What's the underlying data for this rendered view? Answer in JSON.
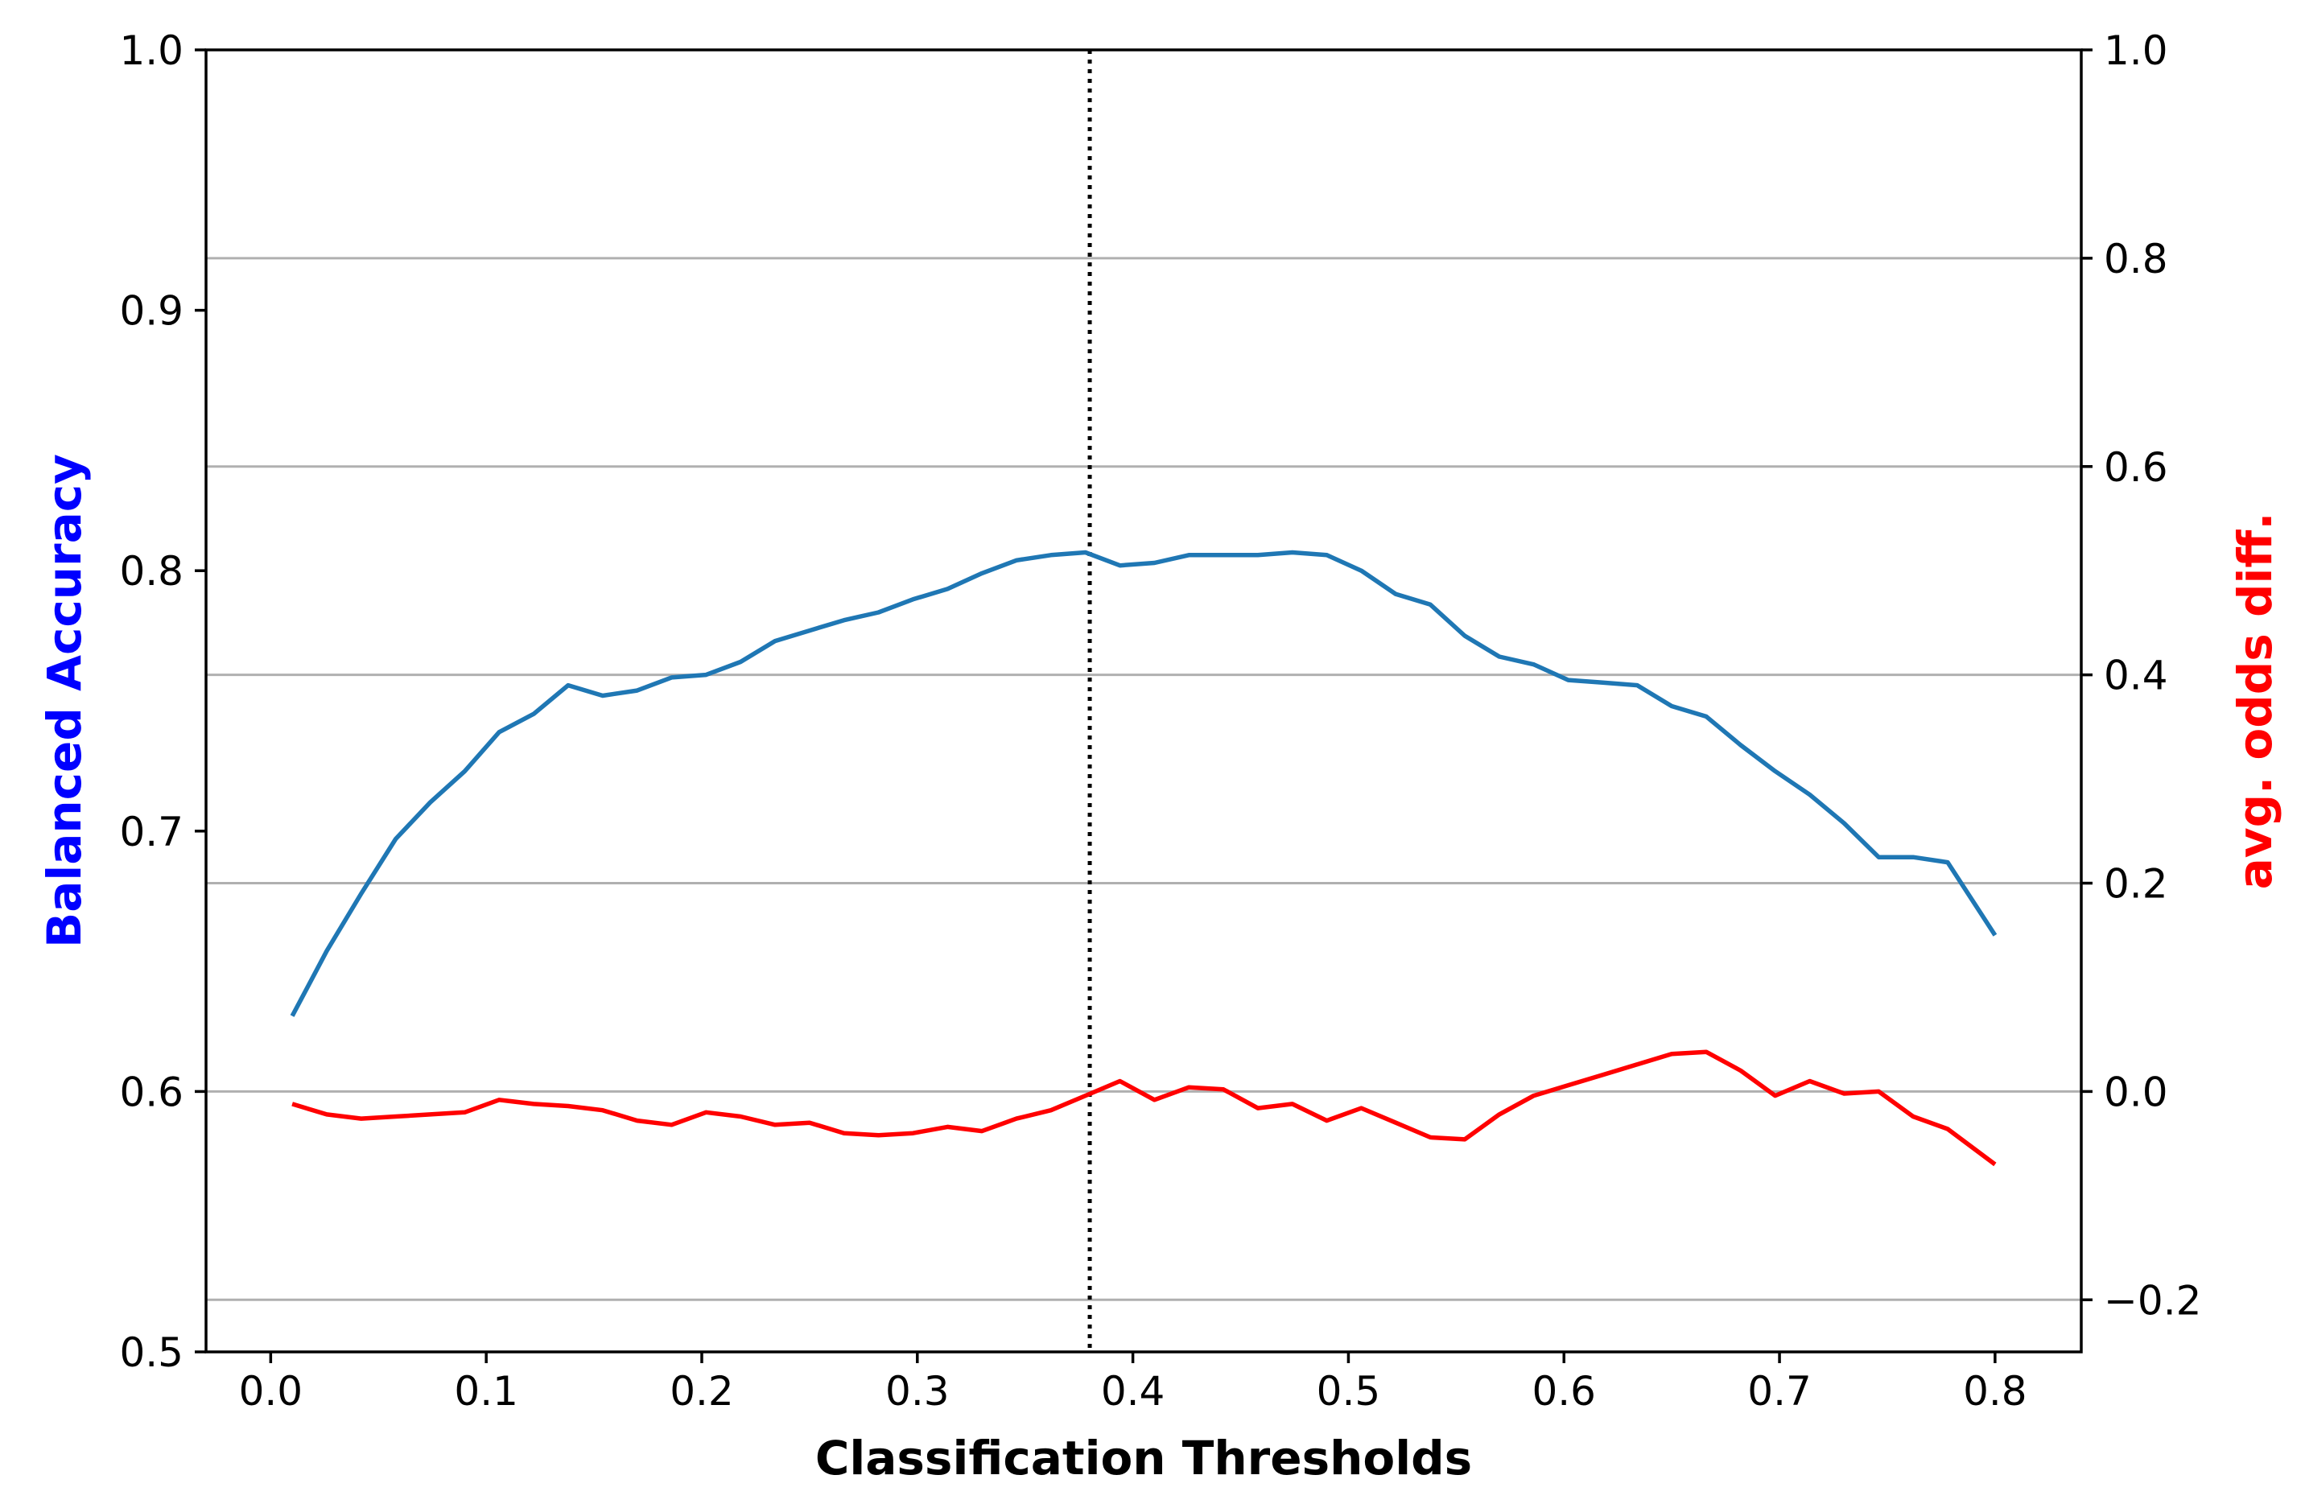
{
  "chart_data": {
    "type": "line",
    "xlabel": "Classification Thresholds",
    "ylabel_left": "Balanced Accuracy",
    "ylabel_right": "avg. odds diff.",
    "xlim": [
      -0.03,
      0.84
    ],
    "ylim_left": [
      0.5,
      1.0
    ],
    "ylim_right": [
      -0.25,
      1.0
    ],
    "x_ticks": [
      0.0,
      0.1,
      0.2,
      0.3,
      0.4,
      0.5,
      0.6,
      0.7,
      0.8
    ],
    "x_tick_labels": [
      "0.0",
      "0.1",
      "0.2",
      "0.3",
      "0.4",
      "0.5",
      "0.6",
      "0.7",
      "0.8"
    ],
    "y_left_ticks": [
      0.5,
      0.6,
      0.7,
      0.8,
      0.9,
      1.0
    ],
    "y_left_tick_labels": [
      "0.5",
      "0.6",
      "0.7",
      "0.8",
      "0.9",
      "1.0"
    ],
    "y_right_ticks": [
      -0.2,
      0.0,
      0.2,
      0.4,
      0.6,
      0.8,
      1.0
    ],
    "y_right_tick_labels": [
      "−0.2",
      "0.0",
      "0.2",
      "0.4",
      "0.6",
      "0.8",
      "1.0"
    ],
    "grid": "horizontal, right axis",
    "vline_x": 0.38,
    "colors": {
      "balanced_accuracy": "#1f77b4",
      "avg_odds_diff": "#ff0000",
      "left_label": "#0000ff",
      "right_label": "#ff0000",
      "grid": "#b0b0b0"
    },
    "x": [
      0.01,
      0.026,
      0.042,
      0.058,
      0.074,
      0.09,
      0.106,
      0.122,
      0.138,
      0.154,
      0.17,
      0.186,
      0.202,
      0.218,
      0.234,
      0.25,
      0.266,
      0.282,
      0.298,
      0.314,
      0.33,
      0.346,
      0.362,
      0.378,
      0.394,
      0.41,
      0.426,
      0.442,
      0.458,
      0.474,
      0.49,
      0.506,
      0.522,
      0.538,
      0.554,
      0.57,
      0.586,
      0.602,
      0.618,
      0.634,
      0.65,
      0.666,
      0.682,
      0.698,
      0.714,
      0.73,
      0.746,
      0.762,
      0.778,
      0.8
    ],
    "series": [
      {
        "axis": "left",
        "color": "#1f77b4",
        "values": [
          0.629,
          0.654,
          0.676,
          0.697,
          0.711,
          0.723,
          0.738,
          0.745,
          0.756,
          0.752,
          0.754,
          0.759,
          0.76,
          0.765,
          0.773,
          0.777,
          0.781,
          0.784,
          0.789,
          0.793,
          0.799,
          0.804,
          0.806,
          0.807,
          0.802,
          0.803,
          0.806,
          0.806,
          0.806,
          0.807,
          0.806,
          0.8,
          0.791,
          0.787,
          0.775,
          0.767,
          0.764,
          0.758,
          0.757,
          0.756,
          0.748,
          0.744,
          0.733,
          0.723,
          0.714,
          0.703,
          0.69,
          0.69,
          0.688,
          0.66
        ]
      },
      {
        "axis": "right",
        "color": "#ff0000",
        "values": [
          -0.012,
          -0.022,
          -0.026,
          -0.024,
          -0.022,
          -0.02,
          -0.008,
          -0.012,
          -0.014,
          -0.018,
          -0.028,
          -0.032,
          -0.02,
          -0.024,
          -0.032,
          -0.03,
          -0.04,
          -0.042,
          -0.04,
          -0.034,
          -0.038,
          -0.026,
          -0.018,
          -0.004,
          0.01,
          -0.008,
          0.004,
          0.002,
          -0.016,
          -0.012,
          -0.028,
          -0.016,
          -0.03,
          -0.044,
          -0.046,
          -0.022,
          -0.004,
          0.006,
          0.016,
          0.026,
          0.036,
          0.038,
          0.02,
          -0.004,
          0.01,
          -0.002,
          0.0,
          -0.024,
          -0.036,
          -0.07
        ]
      }
    ]
  }
}
